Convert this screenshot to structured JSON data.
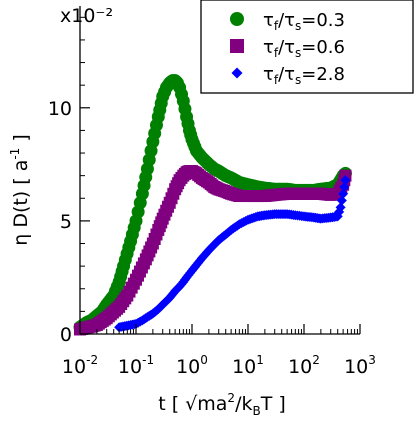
{
  "chart_data": {
    "type": "scatter",
    "title": "",
    "xlabel": "t [ √ma²/k_BT ]",
    "ylabel": "η D(t) [ a⁻¹ ]",
    "xscale": "log",
    "xlim": [
      0.01,
      1000
    ],
    "ylim": [
      0,
      14.5
    ],
    "y_multiplier": "x10⁻²",
    "grid": false,
    "legend_position": "top-right",
    "x_ticks": [
      {
        "base": "10",
        "exp": "-2"
      },
      {
        "base": "10",
        "exp": "-1"
      },
      {
        "base": "10",
        "exp": "0"
      },
      {
        "base": "10",
        "exp": "1"
      },
      {
        "base": "10",
        "exp": "2"
      },
      {
        "base": "10",
        "exp": "3"
      }
    ],
    "y_ticks": [
      "0",
      "5",
      "10"
    ],
    "series": [
      {
        "name": "τ_f/τ_s=0.3",
        "color": "#008000",
        "marker": "circle",
        "x": [
          0.01,
          0.013,
          0.016,
          0.02,
          0.025,
          0.03,
          0.04,
          0.05,
          0.06,
          0.08,
          0.1,
          0.13,
          0.16,
          0.2,
          0.25,
          0.3,
          0.35,
          0.4,
          0.45,
          0.5,
          0.55,
          0.6,
          0.65,
          0.7,
          0.8,
          0.9,
          1.0,
          1.2,
          1.5,
          2,
          2.5,
          3,
          4,
          5,
          7,
          10,
          15,
          20,
          30,
          50,
          70,
          100,
          150,
          200,
          300,
          400,
          500,
          550
        ],
        "y": [
          0.3,
          0.5,
          0.6,
          0.8,
          1.0,
          1.3,
          1.7,
          2.3,
          3.0,
          4.1,
          5.0,
          6.2,
          7.3,
          8.5,
          9.6,
          10.5,
          10.9,
          11.1,
          11.2,
          11.2,
          11.1,
          10.9,
          10.6,
          10.3,
          9.6,
          9.0,
          8.6,
          8.1,
          7.8,
          7.5,
          7.3,
          7.2,
          7.0,
          6.9,
          6.7,
          6.6,
          6.5,
          6.45,
          6.4,
          6.4,
          6.35,
          6.35,
          6.35,
          6.4,
          6.45,
          6.6,
          7.0,
          7.1
        ]
      },
      {
        "name": "τ_f/τ_s=0.6",
        "color": "#800080",
        "marker": "square",
        "x": [
          0.01,
          0.02,
          0.03,
          0.05,
          0.07,
          0.1,
          0.15,
          0.2,
          0.25,
          0.3,
          0.4,
          0.5,
          0.6,
          0.7,
          0.8,
          0.9,
          1.0,
          1.2,
          1.5,
          2,
          2.5,
          3,
          4,
          5,
          7,
          10,
          15,
          20,
          30,
          50,
          70,
          100,
          150,
          200,
          300,
          400,
          500,
          550
        ],
        "y": [
          0.2,
          0.4,
          0.7,
          1.2,
          1.7,
          2.4,
          3.3,
          4.0,
          4.6,
          5.1,
          5.8,
          6.4,
          6.8,
          7.0,
          7.15,
          7.2,
          7.2,
          7.1,
          6.9,
          6.7,
          6.5,
          6.4,
          6.3,
          6.2,
          6.1,
          6.1,
          6.1,
          6.1,
          6.15,
          6.2,
          6.2,
          6.2,
          6.2,
          6.2,
          6.15,
          6.2,
          6.6,
          7.0
        ]
      },
      {
        "name": "τ_f/τ_s=2.8",
        "color": "#0000ff",
        "marker": "diamond",
        "x": [
          0.05,
          0.08,
          0.1,
          0.13,
          0.16,
          0.2,
          0.25,
          0.3,
          0.4,
          0.5,
          0.6,
          0.7,
          0.8,
          1.0,
          1.2,
          1.5,
          2,
          2.5,
          3,
          4,
          5,
          7,
          10,
          15,
          20,
          30,
          50,
          70,
          100,
          150,
          200,
          300,
          400,
          450,
          500,
          550
        ],
        "y": [
          0.3,
          0.4,
          0.45,
          0.6,
          0.75,
          0.9,
          1.1,
          1.3,
          1.6,
          1.9,
          2.1,
          2.3,
          2.5,
          2.8,
          3.05,
          3.35,
          3.7,
          3.95,
          4.15,
          4.4,
          4.6,
          4.85,
          5.05,
          5.2,
          5.25,
          5.3,
          5.3,
          5.25,
          5.2,
          5.15,
          5.1,
          5.15,
          5.2,
          5.6,
          6.2,
          6.8
        ]
      }
    ]
  }
}
